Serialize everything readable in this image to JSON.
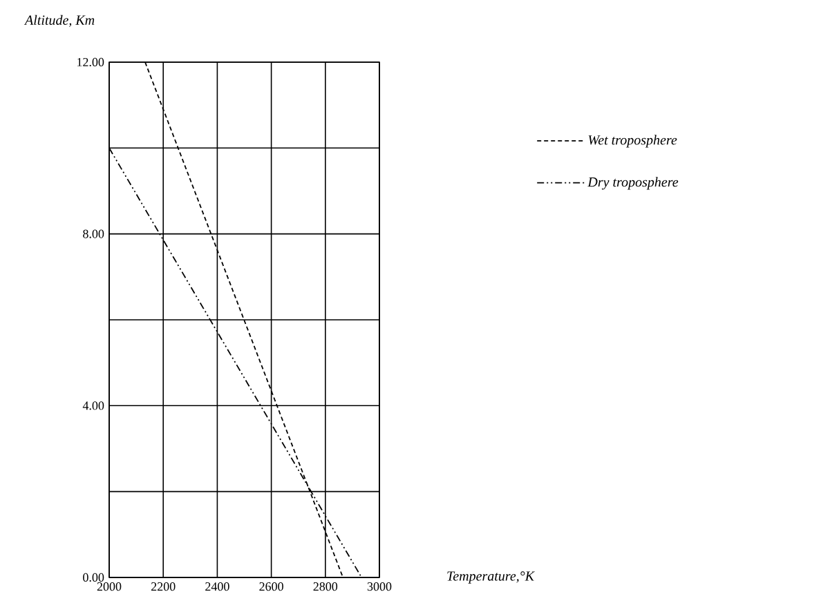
{
  "chart_data": {
    "type": "line",
    "xlabel": "Temperature,°K",
    "ylabel": "Altitude, Km",
    "series": [
      {
        "name": "Wet troposphere",
        "color": "#000000",
        "line_style": "dashed",
        "x": [
          2133,
          2865
        ],
        "values": [
          12,
          0
        ]
      },
      {
        "name": "Dry troposphere",
        "color": "#000000",
        "line_style": "dash-dot",
        "x": [
          2000,
          2934
        ],
        "values": [
          10,
          0
        ]
      }
    ],
    "xlim": [
      2000,
      3000
    ],
    "xticks": [
      2000,
      2200,
      2400,
      2600,
      2800,
      3000
    ],
    "ylim": [
      0,
      12
    ],
    "yticks": [
      {
        "value": 0,
        "label": "0.00"
      },
      {
        "value": 2,
        "label": null
      },
      {
        "value": 4,
        "label": "4.00"
      },
      {
        "value": 6,
        "label": null
      },
      {
        "value": 8,
        "label": "8.00"
      },
      {
        "value": 10,
        "label": null
      },
      {
        "value": 12,
        "label": "12.00"
      }
    ],
    "grid": true,
    "legend": "top right"
  }
}
